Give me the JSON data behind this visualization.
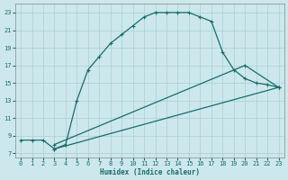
{
  "xlabel": "Humidex (Indice chaleur)",
  "bg_color": "#cce8ec",
  "grid_color": "#aacdd4",
  "line_color": "#1a6b6b",
  "line1_x": [
    0,
    1,
    2,
    3,
    4,
    5,
    6,
    7,
    8,
    9,
    10,
    11,
    12,
    13,
    14,
    15,
    16,
    17,
    18,
    19,
    20,
    21,
    22,
    23
  ],
  "line1_y": [
    8.5,
    8.5,
    8.5,
    7.5,
    8.0,
    13.0,
    16.5,
    18.0,
    19.5,
    20.5,
    21.5,
    22.5,
    23.0,
    23.0,
    23.0,
    23.0,
    22.5,
    22.0,
    18.5,
    16.5,
    15.5,
    15.0,
    14.8,
    14.5
  ],
  "line2_x": [
    3,
    20,
    23
  ],
  "line2_y": [
    8.0,
    17.0,
    14.5
  ],
  "line3_x": [
    3,
    23
  ],
  "line3_y": [
    7.5,
    14.5
  ],
  "xlim": [
    -0.5,
    23.5
  ],
  "ylim": [
    6.5,
    24
  ],
  "yticks": [
    7,
    9,
    11,
    13,
    15,
    17,
    19,
    21,
    23
  ],
  "xticks": [
    0,
    1,
    2,
    3,
    4,
    5,
    6,
    7,
    8,
    9,
    10,
    11,
    12,
    13,
    14,
    15,
    16,
    17,
    18,
    19,
    20,
    21,
    22,
    23
  ]
}
